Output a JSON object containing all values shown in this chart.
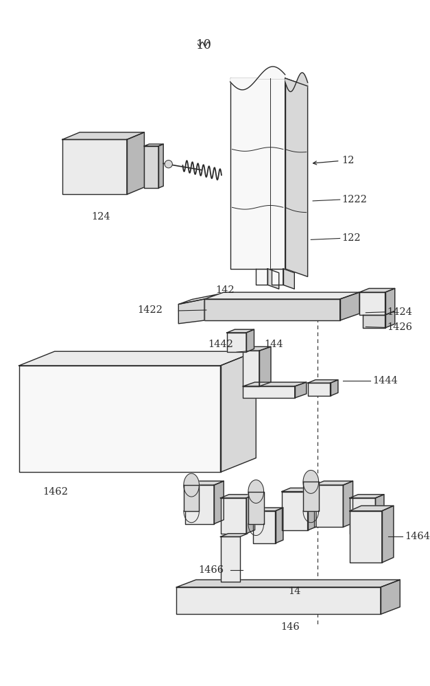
{
  "bg_color": "#ffffff",
  "lc": "#2a2a2a",
  "fc_white": "#f8f8f8",
  "fc_light": "#ebebeb",
  "fc_mid": "#d8d8d8",
  "fc_dark": "#b8b8b8",
  "lw": 1.0,
  "lw_thin": 0.7
}
